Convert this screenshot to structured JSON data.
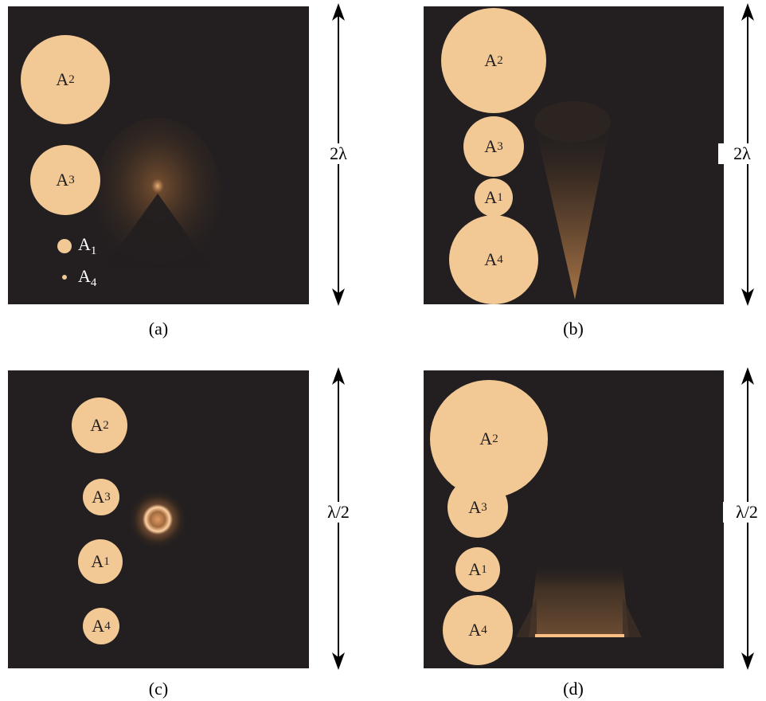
{
  "panels": [
    {
      "id": "a",
      "caption": "(a)",
      "scale_label": "2λ",
      "discs": [
        {
          "name": "A",
          "sub": "2"
        },
        {
          "name": "A",
          "sub": "3"
        },
        {
          "name": "A",
          "sub": "1"
        },
        {
          "name": "A",
          "sub": "4"
        }
      ]
    },
    {
      "id": "b",
      "caption": "(b)",
      "scale_label": "2λ",
      "discs": [
        {
          "name": "A",
          "sub": "2"
        },
        {
          "name": "A",
          "sub": "3"
        },
        {
          "name": "A",
          "sub": "1"
        },
        {
          "name": "A",
          "sub": "4"
        }
      ]
    },
    {
      "id": "c",
      "caption": "(c)",
      "scale_label": "λ/2",
      "discs": [
        {
          "name": "A",
          "sub": "2"
        },
        {
          "name": "A",
          "sub": "3"
        },
        {
          "name": "A",
          "sub": "1"
        },
        {
          "name": "A",
          "sub": "4"
        }
      ]
    },
    {
      "id": "d",
      "caption": "(d)",
      "scale_label": "λ/2",
      "discs": [
        {
          "name": "A",
          "sub": "2"
        },
        {
          "name": "A",
          "sub": "3"
        },
        {
          "name": "A",
          "sub": "1"
        },
        {
          "name": "A",
          "sub": "4"
        }
      ]
    }
  ],
  "colors": {
    "panel_bg": "#231f20",
    "disc_fill": "#f2c995",
    "glow": "#c98a4a"
  }
}
